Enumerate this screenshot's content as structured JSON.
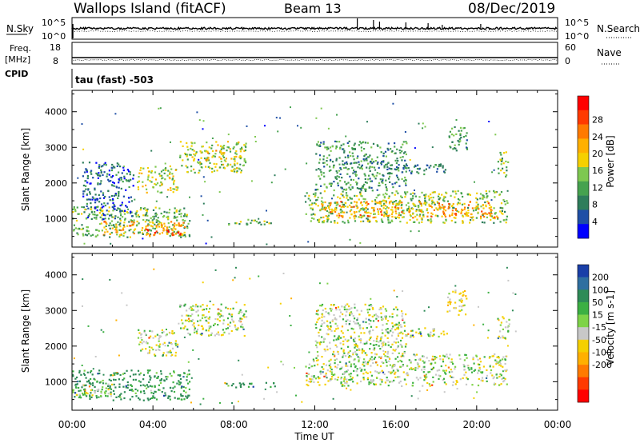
{
  "header": {
    "station": "Wallops Island (fitACF)",
    "beam": "Beam 13",
    "date": "08/Dec/2019"
  },
  "panels": {
    "nsky": {
      "label": "N.Sky",
      "tick_top": "10^5",
      "tick_bottom": "10^0",
      "right_label": "N.Search",
      "right_tick_top": "10^5",
      "right_tick_bottom": "10^0"
    },
    "freq": {
      "label_line1": "Freq.",
      "label_line2": "[MHz]",
      "tick_top": "18",
      "tick_bottom": "8",
      "right_label": "Nave",
      "right_tick_top": "60",
      "right_tick_bottom": "0"
    },
    "cpid": {
      "label": "CPID",
      "value": "tau (fast) -503"
    }
  },
  "chart_data": [
    {
      "type": "heatmap",
      "name": "power",
      "xlabel": "",
      "ylabel": "Slant Range [km]",
      "x_ticks": [
        "00:00",
        "04:00",
        "08:00",
        "12:00",
        "16:00",
        "20:00",
        "00:00"
      ],
      "y_ticks": [
        1000,
        2000,
        3000,
        4000
      ],
      "ylim": [
        200,
        4600
      ],
      "colorbar": {
        "label": "Power [dB]",
        "ticks": [
          "4",
          "8",
          "12",
          "16",
          "20",
          "24",
          "28"
        ],
        "colors": [
          "#0000ff",
          "#1f4fa6",
          "#2e7d5b",
          "#46a24f",
          "#7ec850",
          "#f5d000",
          "#ffb000",
          "#ff7a00",
          "#ff3a00",
          "#ff0000"
        ]
      },
      "bands": [
        {
          "t0": 0.0,
          "t1": 5.8,
          "r0": 500,
          "r1": 1350,
          "v": 14
        },
        {
          "t0": 1.5,
          "t1": 5.6,
          "r0": 550,
          "r1": 950,
          "v": 22
        },
        {
          "t0": 3.6,
          "t1": 5.6,
          "r0": 550,
          "r1": 700,
          "v": 27
        },
        {
          "t0": 3.2,
          "t1": 5.2,
          "r0": 1750,
          "r1": 2500,
          "v": 17
        },
        {
          "t0": 5.3,
          "t1": 8.6,
          "r0": 2300,
          "r1": 3200,
          "v": 16
        },
        {
          "t0": 6.5,
          "t1": 7.6,
          "r0": 2600,
          "r1": 2950,
          "v": 20
        },
        {
          "t0": 7.3,
          "t1": 10.0,
          "r0": 850,
          "r1": 1000,
          "v": 14
        },
        {
          "t0": 11.5,
          "t1": 21.5,
          "r0": 900,
          "r1": 1800,
          "v": 15
        },
        {
          "t0": 12.3,
          "t1": 21.2,
          "r0": 1050,
          "r1": 1500,
          "v": 22
        },
        {
          "t0": 12.0,
          "t1": 16.5,
          "r0": 1800,
          "r1": 3200,
          "v": 11
        },
        {
          "t0": 15.5,
          "t1": 18.5,
          "r0": 2250,
          "r1": 2550,
          "v": 9
        },
        {
          "t0": 18.5,
          "t1": 19.5,
          "r0": 2900,
          "r1": 3600,
          "v": 12
        },
        {
          "t0": 21.0,
          "t1": 21.6,
          "r0": 2200,
          "r1": 2900,
          "v": 14
        },
        {
          "t0": 0.5,
          "t1": 3.0,
          "r0": 1000,
          "r1": 2600,
          "v": 8
        }
      ]
    },
    {
      "type": "heatmap",
      "name": "velocity",
      "xlabel": "Time UT",
      "ylabel": "Slant Range [km]",
      "x_ticks": [
        "00:00",
        "04:00",
        "08:00",
        "12:00",
        "16:00",
        "20:00",
        "00:00"
      ],
      "y_ticks": [
        1000,
        2000,
        3000,
        4000
      ],
      "ylim": [
        200,
        4600
      ],
      "colorbar": {
        "label": "Velocity [m s-1]",
        "ticks": [
          "200",
          "100",
          "50",
          "15",
          "-15",
          "-50",
          "-100",
          "-200"
        ],
        "colors": [
          "#1a3fa8",
          "#2f6fa0",
          "#2e8b57",
          "#3cb043",
          "#7ed348",
          "#c8c8c8",
          "#f5d000",
          "#ffb000",
          "#ff7a00",
          "#ff3a00",
          "#ff0000"
        ]
      },
      "bands": [
        {
          "t0": 0.0,
          "t1": 5.8,
          "r0": 500,
          "r1": 1350,
          "v": 40
        },
        {
          "t0": 0.0,
          "t1": 2.0,
          "r0": 600,
          "r1": 950,
          "v": 0
        },
        {
          "t0": 3.2,
          "t1": 5.2,
          "r0": 1750,
          "r1": 2500,
          "v": 0
        },
        {
          "t0": 5.3,
          "t1": 8.6,
          "r0": 2300,
          "r1": 3200,
          "v": 0
        },
        {
          "t0": 7.3,
          "t1": 10.0,
          "r0": 850,
          "r1": 1000,
          "v": 40
        },
        {
          "t0": 11.5,
          "t1": 21.5,
          "r0": 900,
          "r1": 1800,
          "v": 0
        },
        {
          "t0": 12.0,
          "t1": 16.5,
          "r0": 1800,
          "r1": 3200,
          "v": 0
        },
        {
          "t0": 15.5,
          "t1": 18.5,
          "r0": 2250,
          "r1": 2550,
          "v": 0
        },
        {
          "t0": 18.5,
          "t1": 19.5,
          "r0": 2900,
          "r1": 3600,
          "v": -20
        },
        {
          "t0": 21.0,
          "t1": 21.6,
          "r0": 2200,
          "r1": 2900,
          "v": 0
        }
      ]
    }
  ]
}
